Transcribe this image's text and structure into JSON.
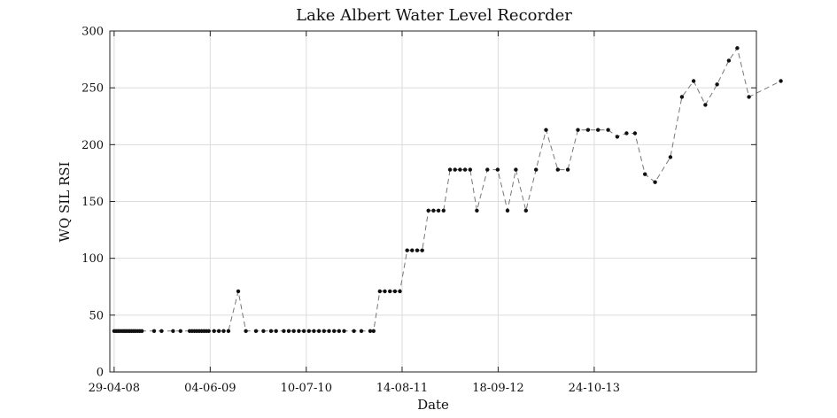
{
  "chart_data": {
    "type": "line",
    "title": "Lake Albert Water Level Recorder",
    "xlabel": "Date",
    "ylabel": "WQ SIL RSI",
    "x_ticks": [
      "29-04-08",
      "04-06-09",
      "10-07-10",
      "14-08-11",
      "18-09-12",
      "24-10-13"
    ],
    "y_ticks": [
      "0",
      "50",
      "100",
      "150",
      "200",
      "250",
      "300"
    ],
    "ylim": [
      0,
      300
    ],
    "xlim": [
      "2008-04-11",
      "2015-09-01"
    ],
    "grid": true,
    "series": [
      {
        "values": [
          [
            "2008-04-29",
            36
          ],
          [
            "2008-05-07",
            36
          ],
          [
            "2008-05-15",
            36
          ],
          [
            "2008-05-23",
            36
          ],
          [
            "2008-06-01",
            36
          ],
          [
            "2008-06-09",
            36
          ],
          [
            "2008-06-17",
            36
          ],
          [
            "2008-06-25",
            36
          ],
          [
            "2008-07-03",
            36
          ],
          [
            "2008-07-11",
            36
          ],
          [
            "2008-07-19",
            36
          ],
          [
            "2008-07-27",
            36
          ],
          [
            "2008-08-05",
            36
          ],
          [
            "2008-08-14",
            36
          ],
          [
            "2008-08-23",
            36
          ],
          [
            "2008-10-13",
            36
          ],
          [
            "2008-11-13",
            36
          ],
          [
            "2008-12-31",
            36
          ],
          [
            "2009-01-31",
            36
          ],
          [
            "2009-03-10",
            36
          ],
          [
            "2009-03-20",
            36
          ],
          [
            "2009-03-30",
            36
          ],
          [
            "2009-04-09",
            36
          ],
          [
            "2009-04-19",
            36
          ],
          [
            "2009-04-29",
            36
          ],
          [
            "2009-05-09",
            36
          ],
          [
            "2009-05-19",
            36
          ],
          [
            "2009-05-29",
            36
          ],
          [
            "2009-06-20",
            36
          ],
          [
            "2009-07-10",
            36
          ],
          [
            "2009-07-30",
            36
          ],
          [
            "2009-08-19",
            36
          ],
          [
            "2009-09-29",
            71
          ],
          [
            "2009-10-31",
            36
          ],
          [
            "2009-12-12",
            36
          ],
          [
            "2010-01-12",
            36
          ],
          [
            "2010-02-13",
            36
          ],
          [
            "2010-03-06",
            36
          ],
          [
            "2010-04-07",
            36
          ],
          [
            "2010-04-28",
            36
          ],
          [
            "2010-05-19",
            36
          ],
          [
            "2010-06-09",
            36
          ],
          [
            "2010-06-30",
            36
          ],
          [
            "2010-07-21",
            36
          ],
          [
            "2010-08-11",
            36
          ],
          [
            "2010-09-01",
            36
          ],
          [
            "2010-09-22",
            36
          ],
          [
            "2010-10-13",
            36
          ],
          [
            "2010-11-03",
            36
          ],
          [
            "2010-11-24",
            36
          ],
          [
            "2010-12-15",
            36
          ],
          [
            "2011-01-25",
            36
          ],
          [
            "2011-02-25",
            36
          ],
          [
            "2011-04-03",
            36
          ],
          [
            "2011-04-17",
            36
          ],
          [
            "2011-05-13",
            71
          ],
          [
            "2011-06-03",
            71
          ],
          [
            "2011-06-24",
            71
          ],
          [
            "2011-07-15",
            71
          ],
          [
            "2011-08-05",
            71
          ],
          [
            "2011-09-04",
            107
          ],
          [
            "2011-09-25",
            107
          ],
          [
            "2011-10-16",
            107
          ],
          [
            "2011-11-06",
            107
          ],
          [
            "2011-12-02",
            142
          ],
          [
            "2011-12-23",
            142
          ],
          [
            "2012-01-13",
            142
          ],
          [
            "2012-02-03",
            142
          ],
          [
            "2012-03-01",
            178
          ],
          [
            "2012-03-22",
            178
          ],
          [
            "2012-04-12",
            178
          ],
          [
            "2012-05-03",
            178
          ],
          [
            "2012-05-24",
            178
          ],
          [
            "2012-06-21",
            142
          ],
          [
            "2012-08-04",
            178
          ],
          [
            "2012-09-16",
            178
          ],
          [
            "2012-10-27",
            142
          ],
          [
            "2012-12-01",
            178
          ],
          [
            "2013-01-12",
            142
          ],
          [
            "2013-02-23",
            178
          ],
          [
            "2013-04-06",
            213
          ],
          [
            "2013-05-25",
            178
          ],
          [
            "2013-07-06",
            178
          ],
          [
            "2013-08-17",
            213
          ],
          [
            "2013-09-28",
            213
          ],
          [
            "2013-11-09",
            213
          ],
          [
            "2013-12-21",
            213
          ],
          [
            "2014-01-28",
            207
          ],
          [
            "2014-03-08",
            210
          ],
          [
            "2014-04-12",
            210
          ],
          [
            "2014-05-24",
            174
          ],
          [
            "2014-07-05",
            167
          ],
          [
            "2014-09-07",
            189
          ],
          [
            "2014-10-25",
            242
          ],
          [
            "2014-12-13",
            256
          ],
          [
            "2015-01-31",
            235
          ],
          [
            "2015-03-21",
            253
          ],
          [
            "2015-05-09",
            274
          ],
          [
            "2015-06-13",
            285
          ],
          [
            "2015-08-01",
            242
          ],
          [
            "2015-12-12",
            256
          ]
        ]
      }
    ]
  }
}
